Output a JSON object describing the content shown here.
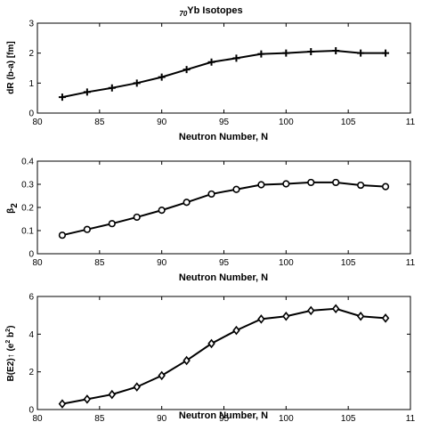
{
  "title": {
    "sub": "70",
    "main": "Yb Isotopes"
  },
  "chart_data": [
    {
      "type": "line",
      "marker": "plus",
      "xlabel": "Neutron Number, N",
      "ylabel": "dR (b-a) [fm]",
      "xlim": [
        80,
        110
      ],
      "ylim": [
        0,
        3
      ],
      "xticks": [
        "80",
        "85",
        "90",
        "95",
        "100",
        "105",
        "11"
      ],
      "yticks": [
        "0",
        "1",
        "2",
        "3"
      ],
      "x": [
        82,
        84,
        86,
        88,
        90,
        92,
        94,
        96,
        98,
        100,
        102,
        104,
        106,
        108
      ],
      "y": [
        0.53,
        0.7,
        0.84,
        1.0,
        1.2,
        1.45,
        1.7,
        1.83,
        1.97,
        2.0,
        2.05,
        2.08,
        2.0,
        2.0
      ]
    },
    {
      "type": "line",
      "marker": "circle",
      "xlabel": "Neutron Number, N",
      "ylabel": "β",
      "ylabel_sub": "2",
      "xlim": [
        80,
        110
      ],
      "ylim": [
        0,
        0.4
      ],
      "xticks": [
        "80",
        "85",
        "90",
        "95",
        "100",
        "105",
        "11"
      ],
      "yticks": [
        "0",
        "0.1",
        "0.2",
        "0.3",
        "0.4"
      ],
      "x": [
        82,
        84,
        86,
        88,
        90,
        92,
        94,
        96,
        98,
        100,
        102,
        104,
        106,
        108
      ],
      "y": [
        0.08,
        0.105,
        0.13,
        0.158,
        0.188,
        0.222,
        0.258,
        0.278,
        0.298,
        0.302,
        0.308,
        0.308,
        0.296,
        0.29
      ]
    },
    {
      "type": "line",
      "marker": "diamond",
      "xlabel": "Neutron Number, N",
      "ylabel": "B(E2)↑ (e",
      "ylabel_sup": "2",
      "ylabel_mid": " b",
      "ylabel_sup2": "2",
      "ylabel_end": ")",
      "xlim": [
        80,
        110
      ],
      "ylim": [
        0,
        6
      ],
      "xticks": [
        "80",
        "85",
        "90",
        "95",
        "100",
        "105",
        "11"
      ],
      "yticks": [
        "0",
        "2",
        "4",
        "6"
      ],
      "x": [
        82,
        84,
        86,
        88,
        90,
        92,
        94,
        96,
        98,
        100,
        102,
        104,
        106,
        108
      ],
      "y": [
        0.3,
        0.55,
        0.8,
        1.2,
        1.8,
        2.6,
        3.5,
        4.2,
        4.8,
        4.95,
        5.25,
        5.35,
        4.95,
        4.85
      ]
    }
  ]
}
